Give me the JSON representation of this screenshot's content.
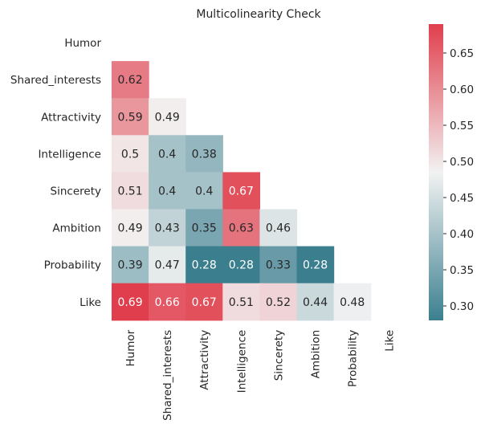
{
  "chart_data": {
    "type": "heatmap",
    "title": "Multicolinearity Check",
    "rows": [
      "Humor",
      "Shared_interests",
      "Attractivity",
      "Intelligence",
      "Sincerety",
      "Ambition",
      "Probability",
      "Like"
    ],
    "columns": [
      "Humor",
      "Shared_interests",
      "Attractivity",
      "Intelligence",
      "Sincerety",
      "Ambition",
      "Probability",
      "Like"
    ],
    "mask": "upper-triangle-including-diagonal",
    "values": [
      [
        null,
        null,
        null,
        null,
        null,
        null,
        null,
        null
      ],
      [
        0.62,
        null,
        null,
        null,
        null,
        null,
        null,
        null
      ],
      [
        0.59,
        0.49,
        null,
        null,
        null,
        null,
        null,
        null
      ],
      [
        0.5,
        0.4,
        0.38,
        null,
        null,
        null,
        null,
        null
      ],
      [
        0.51,
        0.4,
        0.4,
        0.67,
        null,
        null,
        null,
        null
      ],
      [
        0.49,
        0.43,
        0.35,
        0.63,
        0.46,
        null,
        null,
        null
      ],
      [
        0.39,
        0.47,
        0.28,
        0.28,
        0.33,
        0.28,
        null,
        null
      ],
      [
        0.69,
        0.66,
        0.67,
        0.51,
        0.52,
        0.44,
        0.48,
        null
      ]
    ],
    "labels": [
      [
        null,
        null,
        null,
        null,
        null,
        null,
        null,
        null
      ],
      [
        "0.62",
        null,
        null,
        null,
        null,
        null,
        null,
        null
      ],
      [
        "0.59",
        "0.49",
        null,
        null,
        null,
        null,
        null,
        null
      ],
      [
        "0.5",
        "0.4",
        "0.38",
        null,
        null,
        null,
        null,
        null
      ],
      [
        "0.51",
        "0.4",
        "0.4",
        "0.67",
        null,
        null,
        null,
        null
      ],
      [
        "0.49",
        "0.43",
        "0.35",
        "0.63",
        "0.46",
        null,
        null,
        null
      ],
      [
        "0.39",
        "0.47",
        "0.28",
        "0.28",
        "0.33",
        "0.28",
        null,
        null
      ],
      [
        "0.69",
        "0.66",
        "0.67",
        "0.51",
        "0.52",
        "0.44",
        "0.48",
        null
      ]
    ],
    "colorbar": {
      "range": [
        0.28,
        0.69
      ],
      "ticks": [
        0.3,
        0.35,
        0.4,
        0.45,
        0.5,
        0.55,
        0.6,
        0.65
      ],
      "tick_labels": [
        "0.30",
        "0.35",
        "0.40",
        "0.45",
        "0.50",
        "0.55",
        "0.60",
        "0.65"
      ],
      "colormap": "diverging teal-white-red",
      "low_color": "#3b7f8f",
      "mid_color": "#f2f2f2",
      "high_color": "#e03e4c"
    }
  }
}
